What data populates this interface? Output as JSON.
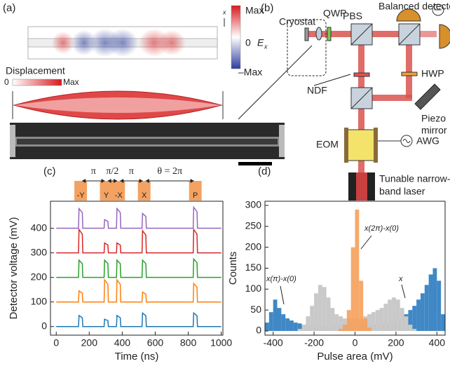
{
  "panel_a": {
    "label": "(a)",
    "colorbar_max": "Max",
    "colorbar_zero": "0",
    "field_symbol": "E",
    "field_subscript": "x",
    "colorbar_min": "–Max",
    "axis_label": "x",
    "displacement_title": "Displacement",
    "displacement_min": "0",
    "displacement_max": "Max"
  },
  "panel_b": {
    "label": "(b)",
    "cryostat": "Cryostat",
    "qwp": "QWP",
    "pbs": "PBS",
    "detector": "Balanced detector",
    "hwp": "HWP",
    "ndf": "NDF",
    "piezo": [
      "Piezo",
      "mirror"
    ],
    "eom": "EOM",
    "awg": "AWG",
    "laser": [
      "Tunable narrow-",
      "band laser"
    ]
  },
  "chart_data": [
    {
      "type": "line",
      "panel_label": "(c)",
      "x_label": "Time (ns)",
      "y_label": "Detector voltage (mV)",
      "x": [
        0,
        135,
        138,
        158,
        161,
        290,
        293,
        313,
        316,
        365,
        368,
        388,
        391,
        520,
        523,
        543,
        546,
        830,
        833,
        853,
        856,
        1000
      ],
      "series": [
        {
          "color": "#1f77b4",
          "values": [
            0,
            0,
            45,
            36,
            0,
            0,
            30,
            24,
            0,
            0,
            45,
            36,
            0,
            0,
            55,
            44,
            0,
            0,
            55,
            44,
            0,
            0
          ]
        },
        {
          "color": "#ff7f0e",
          "values": [
            100,
            100,
            145,
            136,
            100,
            100,
            190,
            172,
            100,
            100,
            190,
            172,
            100,
            100,
            140,
            132,
            100,
            100,
            175,
            160,
            100,
            100
          ]
        },
        {
          "color": "#2ca02c",
          "values": [
            200,
            200,
            270,
            256,
            200,
            200,
            270,
            256,
            200,
            200,
            270,
            256,
            200,
            200,
            270,
            256,
            200,
            200,
            275,
            260,
            200,
            200
          ]
        },
        {
          "color": "#d62728",
          "values": [
            300,
            300,
            395,
            376,
            300,
            300,
            340,
            332,
            300,
            300,
            340,
            332,
            300,
            300,
            390,
            372,
            300,
            300,
            395,
            376,
            300,
            300
          ]
        },
        {
          "color": "#9467bd",
          "values": [
            400,
            400,
            480,
            464,
            400,
            400,
            435,
            428,
            400,
            400,
            480,
            464,
            400,
            400,
            460,
            448,
            400,
            400,
            485,
            468,
            400,
            400
          ]
        }
      ],
      "pulse_labels": [
        "-Y",
        "Y",
        "-X",
        "X",
        "P"
      ],
      "pulse_times": [
        148,
        303,
        378,
        533,
        843
      ],
      "pulse_color": "#f4a261",
      "intervals": [
        {
          "label": "π",
          "from": 148,
          "to": 303
        },
        {
          "label": "π/2",
          "from": 303,
          "to": 378
        },
        {
          "label": "π",
          "from": 378,
          "to": 533
        },
        {
          "label": "θ = 2π",
          "from": 533,
          "to": 843
        }
      ],
      "xlim": [
        -35,
        1010
      ],
      "xticks": [
        0,
        200,
        400,
        600,
        800,
        1000
      ],
      "ylim": [
        -35,
        510
      ],
      "yticks": [
        0,
        100,
        200,
        300,
        400
      ]
    },
    {
      "type": "histogram",
      "panel_label": "(d)",
      "x_label": "Pulse area (mV)",
      "y_label": "Counts",
      "bins": [
        -440,
        -420,
        -400,
        -380,
        -360,
        -340,
        -320,
        -300,
        -280,
        -260,
        -240,
        -220,
        -200,
        -180,
        -160,
        -140,
        -120,
        -100,
        -80,
        -60,
        -40,
        -20,
        0,
        20,
        40,
        60,
        80,
        100,
        120,
        140,
        160,
        180,
        200,
        220,
        240,
        260,
        280,
        300,
        320,
        340,
        360,
        380,
        400,
        420,
        440
      ],
      "series": [
        {
          "color": "#3f88c5",
          "values": [
            20,
            45,
            75,
            55,
            40,
            30,
            25,
            20,
            18,
            15,
            12,
            10,
            10,
            10,
            10,
            12,
            12,
            14,
            15,
            15,
            18,
            20,
            20,
            18,
            15,
            15,
            15,
            15,
            15,
            18,
            20,
            22,
            25,
            30,
            40,
            50,
            60,
            75,
            90,
            110,
            135,
            150,
            120,
            40
          ]
        },
        {
          "color": "#c9c9c9",
          "values": [
            0,
            0,
            0,
            0,
            0,
            0,
            0,
            0,
            5,
            15,
            35,
            60,
            90,
            110,
            105,
            80,
            55,
            40,
            35,
            30,
            30,
            30,
            30,
            30,
            35,
            40,
            45,
            50,
            55,
            65,
            75,
            80,
            75,
            55,
            35,
            15,
            5,
            0,
            0,
            0,
            0,
            0,
            0,
            0
          ]
        },
        {
          "color": "#f5a05a",
          "values": [
            0,
            0,
            0,
            0,
            0,
            0,
            0,
            0,
            0,
            0,
            0,
            0,
            0,
            0,
            0,
            0,
            0,
            0,
            5,
            15,
            50,
            200,
            290,
            120,
            30,
            8,
            0,
            0,
            0,
            0,
            0,
            0,
            0,
            0,
            0,
            0,
            0,
            0,
            0,
            0,
            0,
            0,
            0,
            0
          ]
        }
      ],
      "annotations": [
        "x(π)-x(0)",
        "x(2π)-x(0)",
        "x"
      ],
      "xlim": [
        -440,
        440
      ],
      "xticks": [
        -400,
        -200,
        0,
        200,
        400
      ],
      "ylim": [
        -10,
        310
      ],
      "yticks": [
        0,
        50,
        100,
        150,
        200,
        250,
        300
      ]
    }
  ]
}
